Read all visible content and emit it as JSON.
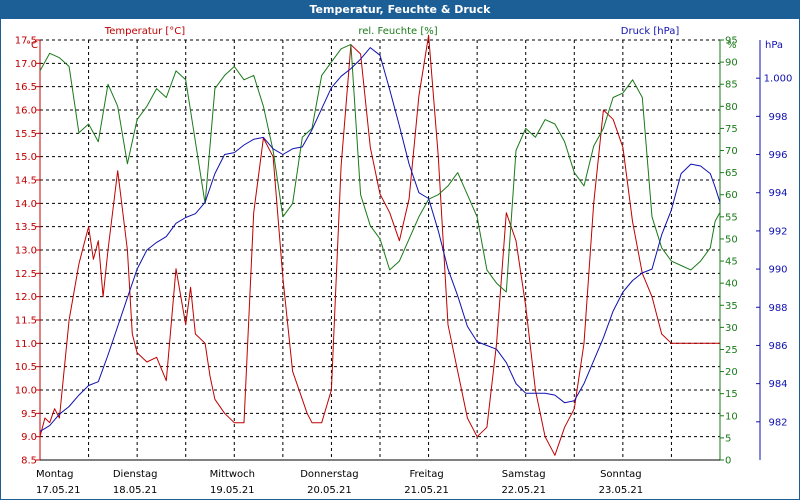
{
  "title": "Temperatur, Feuchte & Druck",
  "colors": {
    "title_bar": "#1c5e96",
    "temperature": "#c00000",
    "humidity": "#1a7a1a",
    "pressure": "#1010b0",
    "grid": "#000000"
  },
  "chart_data": {
    "type": "line",
    "title": "Temperatur, Feuchte & Druck",
    "series_labels": {
      "temperature": "Temperatur [°C]",
      "humidity": "rel. Feuchte [%]",
      "pressure": "Druck [hPa]"
    },
    "unit_labels": {
      "left": "°C",
      "right1": "%",
      "right2": "hPa"
    },
    "x_axis": {
      "range_days": [
        0,
        7
      ],
      "ticks": [
        {
          "day": "Montag",
          "date": "17.05.21"
        },
        {
          "day": "Dienstag",
          "date": "18.05.21"
        },
        {
          "day": "Mittwoch",
          "date": "19.05.21"
        },
        {
          "day": "Donnerstag",
          "date": "20.05.21"
        },
        {
          "day": "Freitag",
          "date": "21.05.21"
        },
        {
          "day": "Samstag",
          "date": "22.05.21"
        },
        {
          "day": "Sonntag",
          "date": "23.05.21"
        }
      ]
    },
    "y_axes": {
      "temperature": {
        "ylim": [
          8.5,
          17.5
        ],
        "ticks": [
          "8.5",
          "9.0",
          "9.5",
          "10.0",
          "10.5",
          "11.0",
          "11.5",
          "12.0",
          "12.5",
          "13.0",
          "13.5",
          "14.0",
          "14.5",
          "15.0",
          "15.5",
          "16.0",
          "16.5",
          "17.0",
          "17.5"
        ]
      },
      "humidity": {
        "ylim": [
          0,
          95
        ],
        "ticks": [
          "0",
          "5",
          "10",
          "15",
          "20",
          "25",
          "30",
          "35",
          "40",
          "45",
          "50",
          "55",
          "60",
          "65",
          "70",
          "75",
          "80",
          "85",
          "90",
          "95"
        ]
      },
      "pressure": {
        "ylim": [
          980,
          1002
        ],
        "ticks": [
          "982",
          "984",
          "986",
          "988",
          "990",
          "992",
          "994",
          "996",
          "998",
          "1.000"
        ]
      }
    },
    "grid": true,
    "series": [
      {
        "key": "temperature",
        "name": "Temperatur [°C]",
        "axis": "temperature",
        "x": [
          0,
          0.05,
          0.1,
          0.15,
          0.2,
          0.3,
          0.4,
          0.45,
          0.5,
          0.55,
          0.6,
          0.65,
          0.7,
          0.8,
          0.9,
          0.95,
          1.0,
          1.1,
          1.2,
          1.3,
          1.4,
          1.5,
          1.55,
          1.6,
          1.7,
          1.75,
          1.8,
          1.9,
          2.0,
          2.1,
          2.2,
          2.3,
          2.4,
          2.5,
          2.6,
          2.7,
          2.75,
          2.8,
          2.9,
          3.0,
          3.1,
          3.2,
          3.3,
          3.4,
          3.5,
          3.6,
          3.7,
          3.8,
          3.9,
          4.0,
          4.1,
          4.2,
          4.3,
          4.4,
          4.5,
          4.6,
          4.7,
          4.8,
          4.9,
          5.0,
          5.1,
          5.2,
          5.3,
          5.4,
          5.5,
          5.6,
          5.7,
          5.8,
          5.9,
          6.0,
          6.1,
          6.2,
          6.3,
          6.4,
          6.5,
          6.6,
          6.7,
          6.75,
          6.8,
          6.85,
          6.9,
          6.95,
          7.0
        ],
        "values": [
          9.0,
          9.4,
          9.3,
          9.6,
          9.4,
          11.5,
          12.7,
          13.1,
          13.5,
          12.8,
          13.2,
          12.0,
          13.0,
          14.7,
          13.0,
          11.2,
          10.8,
          10.6,
          10.7,
          10.2,
          12.6,
          11.4,
          12.2,
          11.2,
          11.0,
          10.3,
          9.8,
          9.5,
          9.3,
          9.3,
          13.8,
          15.4,
          15.0,
          12.4,
          10.4,
          9.8,
          9.5,
          9.3,
          9.3,
          10.0,
          14.8,
          17.4,
          17.2,
          15.2,
          14.2,
          13.8,
          13.2,
          14.1,
          16.3,
          17.6,
          15.0,
          11.4,
          10.4,
          9.4,
          9.0,
          9.2,
          11.0,
          13.8,
          13.2,
          11.8,
          10.0,
          9.0,
          8.6,
          9.2,
          9.6,
          11.0,
          14.0,
          16.0,
          15.8,
          15.2,
          13.6,
          12.5,
          12.0,
          11.2,
          11.0,
          11.0,
          11.0,
          11.0,
          11.0,
          11.0,
          11.0,
          11.0,
          11.0
        ]
      },
      {
        "key": "humidity",
        "name": "rel. Feuchte [%]",
        "axis": "humidity",
        "x": [
          0,
          0.1,
          0.2,
          0.3,
          0.4,
          0.5,
          0.6,
          0.7,
          0.8,
          0.9,
          1.0,
          1.1,
          1.2,
          1.3,
          1.4,
          1.5,
          1.6,
          1.7,
          1.8,
          1.9,
          2.0,
          2.1,
          2.2,
          2.3,
          2.4,
          2.5,
          2.6,
          2.7,
          2.8,
          2.9,
          3.0,
          3.1,
          3.2,
          3.3,
          3.4,
          3.5,
          3.6,
          3.7,
          3.8,
          3.9,
          4.0,
          4.1,
          4.2,
          4.3,
          4.4,
          4.5,
          4.6,
          4.7,
          4.8,
          4.9,
          5.0,
          5.1,
          5.2,
          5.3,
          5.4,
          5.5,
          5.6,
          5.7,
          5.8,
          5.9,
          6.0,
          6.1,
          6.2,
          6.3,
          6.4,
          6.5,
          6.6,
          6.7,
          6.8,
          6.9,
          6.95,
          7.0
        ],
        "values": [
          88,
          92,
          91,
          89,
          74,
          76,
          72,
          85,
          80,
          67,
          77,
          80,
          84,
          82,
          88,
          86,
          72,
          58,
          84,
          87,
          89,
          86,
          87,
          80,
          70,
          55,
          58,
          73,
          75,
          87,
          90,
          93,
          94,
          60,
          53,
          50,
          43,
          45,
          50,
          55,
          59,
          60,
          62,
          65,
          60,
          55,
          43,
          40,
          38,
          70,
          75,
          73,
          77,
          76,
          72,
          65,
          62,
          71,
          75,
          82,
          83,
          86,
          82,
          55,
          48,
          45,
          44,
          43,
          45,
          48,
          54,
          56
        ]
      },
      {
        "key": "pressure",
        "name": "Druck [hPa]",
        "axis": "pressure",
        "x": [
          0,
          0.1,
          0.2,
          0.3,
          0.4,
          0.5,
          0.6,
          0.7,
          0.8,
          0.9,
          1.0,
          1.1,
          1.2,
          1.3,
          1.4,
          1.5,
          1.6,
          1.7,
          1.8,
          1.9,
          2.0,
          2.1,
          2.2,
          2.3,
          2.4,
          2.5,
          2.6,
          2.7,
          2.8,
          2.9,
          3.0,
          3.1,
          3.2,
          3.3,
          3.4,
          3.5,
          3.6,
          3.7,
          3.8,
          3.9,
          4.0,
          4.1,
          4.2,
          4.3,
          4.4,
          4.5,
          4.6,
          4.7,
          4.8,
          4.9,
          5.0,
          5.1,
          5.2,
          5.3,
          5.4,
          5.5,
          5.6,
          5.7,
          5.8,
          5.9,
          6.0,
          6.1,
          6.2,
          6.3,
          6.4,
          6.5,
          6.6,
          6.7,
          6.8,
          6.9,
          6.95,
          7.0
        ],
        "values": [
          981.5,
          981.8,
          982.4,
          982.8,
          983.4,
          983.9,
          984.1,
          985.5,
          987.0,
          988.5,
          990.0,
          991.0,
          991.4,
          991.7,
          992.4,
          992.7,
          992.9,
          993.5,
          995.0,
          996.0,
          996.1,
          996.5,
          996.8,
          996.9,
          996.3,
          996.0,
          996.3,
          996.4,
          997.3,
          998.4,
          999.5,
          1000.1,
          1000.5,
          1001.0,
          1001.6,
          1001.2,
          999.4,
          997.5,
          995.5,
          994.0,
          993.7,
          992.0,
          990.0,
          988.6,
          987.0,
          986.2,
          986.0,
          985.8,
          985.1,
          984.0,
          983.5,
          983.5,
          983.5,
          983.4,
          983.0,
          983.1,
          984.0,
          985.2,
          986.4,
          987.8,
          988.8,
          989.4,
          989.8,
          990.0,
          991.8,
          993.1,
          995.0,
          995.5,
          995.4,
          995.0,
          994.3,
          993.5
        ]
      }
    ]
  }
}
